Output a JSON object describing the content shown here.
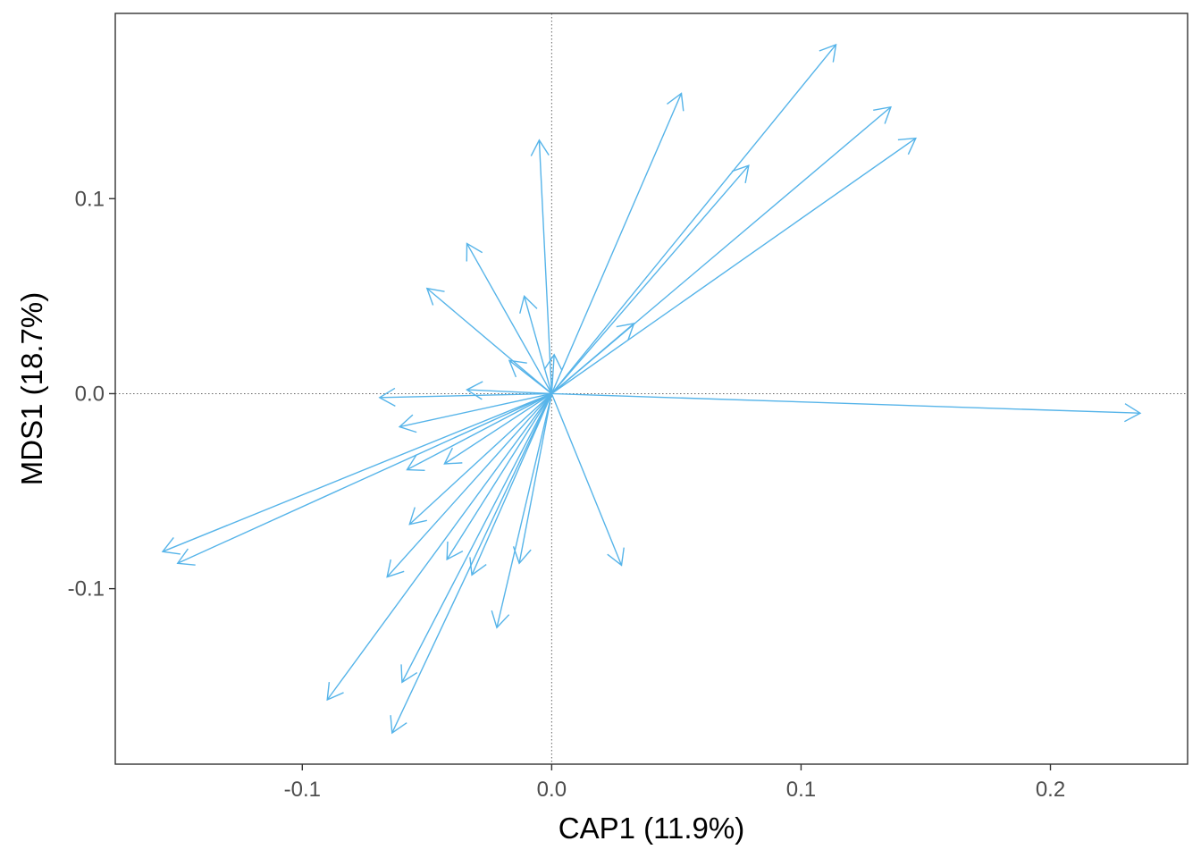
{
  "chart_data": {
    "type": "vector",
    "title": "",
    "xlabel": "CAP1 (11.9%)",
    "ylabel": "MDS1 (18.7%)",
    "xlim": [
      -0.175,
      0.255
    ],
    "ylim": [
      -0.19,
      0.195
    ],
    "x_ticks": [
      -0.1,
      0.0,
      0.1,
      0.2
    ],
    "x_tick_labels": [
      "-0.1",
      "0.0",
      "0.1",
      "0.2"
    ],
    "y_ticks": [
      -0.1,
      0.0,
      0.1
    ],
    "y_tick_labels": [
      "-0.1",
      "0.0",
      "0.1"
    ],
    "reference_lines": {
      "x": 0,
      "y": 0,
      "style": "dotted"
    },
    "arrow_color": "#56B4E9",
    "vectors": [
      {
        "x": 0.236,
        "y": -0.01
      },
      {
        "x": 0.114,
        "y": 0.179
      },
      {
        "x": 0.136,
        "y": 0.147
      },
      {
        "x": 0.146,
        "y": 0.131
      },
      {
        "x": 0.052,
        "y": 0.154
      },
      {
        "x": 0.079,
        "y": 0.117
      },
      {
        "x": -0.005,
        "y": 0.13
      },
      {
        "x": 0.033,
        "y": 0.036
      },
      {
        "x": -0.034,
        "y": 0.077
      },
      {
        "x": -0.05,
        "y": 0.054
      },
      {
        "x": -0.011,
        "y": 0.05
      },
      {
        "x": -0.017,
        "y": 0.017
      },
      {
        "x": 0.001,
        "y": 0.02
      },
      {
        "x": -0.069,
        "y": -0.002
      },
      {
        "x": -0.034,
        "y": 0.002
      },
      {
        "x": -0.061,
        "y": -0.017
      },
      {
        "x": -0.156,
        "y": -0.081
      },
      {
        "x": -0.15,
        "y": -0.087
      },
      {
        "x": -0.058,
        "y": -0.039
      },
      {
        "x": -0.043,
        "y": -0.036
      },
      {
        "x": -0.057,
        "y": -0.067
      },
      {
        "x": -0.066,
        "y": -0.094
      },
      {
        "x": -0.042,
        "y": -0.085
      },
      {
        "x": -0.032,
        "y": -0.093
      },
      {
        "x": -0.013,
        "y": -0.087
      },
      {
        "x": -0.022,
        "y": -0.12
      },
      {
        "x": 0.028,
        "y": -0.088
      },
      {
        "x": -0.09,
        "y": -0.157
      },
      {
        "x": -0.06,
        "y": -0.148
      },
      {
        "x": -0.064,
        "y": -0.174
      }
    ]
  }
}
